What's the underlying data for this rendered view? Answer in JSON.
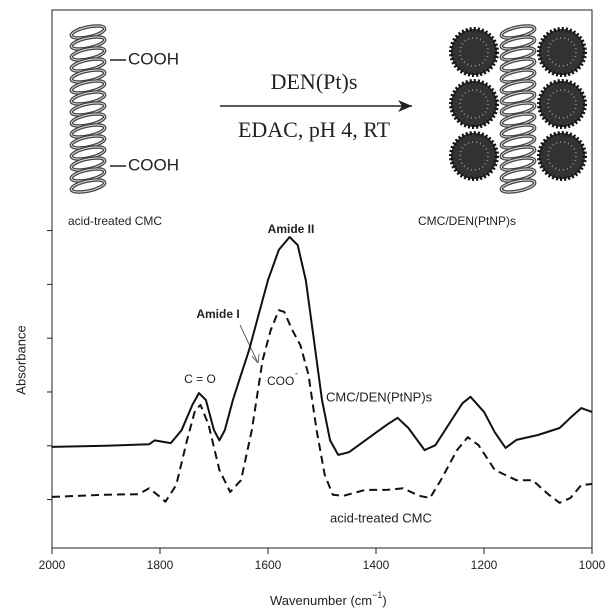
{
  "chart_data": {
    "type": "line",
    "xlabel": {
      "text": "Wavenumber (cm",
      "sup": "−1",
      "tail": ")"
    },
    "ylabel": "Absorbance",
    "xlim": [
      2000,
      1000
    ],
    "xticks": [
      2000,
      1800,
      1600,
      1400,
      1200,
      1000
    ],
    "ylim": [
      -0.9,
      9.1
    ],
    "yticks": [
      0,
      1,
      2,
      3,
      4,
      5
    ],
    "series": [
      {
        "name": "CMC/DEN(PtNP)s",
        "color": "#111",
        "dash": false,
        "x": [
          2000,
          1900,
          1820,
          1810,
          1780,
          1760,
          1740,
          1728,
          1715,
          1700,
          1690,
          1680,
          1665,
          1650,
          1635,
          1620,
          1600,
          1580,
          1560,
          1545,
          1530,
          1515,
          1500,
          1485,
          1470,
          1450,
          1420,
          1380,
          1360,
          1340,
          1310,
          1290,
          1260,
          1240,
          1225,
          1200,
          1180,
          1160,
          1140,
          1100,
          1060,
          1040,
          1020,
          1000
        ],
        "values": [
          0.98,
          1.0,
          1.03,
          1.1,
          1.05,
          1.29,
          1.76,
          1.98,
          1.85,
          1.29,
          1.1,
          1.29,
          1.85,
          2.32,
          2.78,
          3.34,
          4.08,
          4.64,
          4.88,
          4.73,
          4.08,
          2.97,
          1.85,
          1.1,
          0.83,
          0.88,
          1.1,
          1.39,
          1.52,
          1.33,
          0.92,
          1.01,
          1.48,
          1.79,
          1.91,
          1.63,
          1.25,
          0.96,
          1.11,
          1.2,
          1.33,
          1.52,
          1.7,
          1.63
        ]
      },
      {
        "name": "acid-treated CMC",
        "color": "#111",
        "dash": true,
        "x": [
          2000,
          1900,
          1840,
          1820,
          1800,
          1790,
          1770,
          1750,
          1735,
          1725,
          1710,
          1690,
          1670,
          1650,
          1630,
          1610,
          1595,
          1580,
          1570,
          1555,
          1540,
          1525,
          1510,
          1495,
          1480,
          1460,
          1420,
          1380,
          1350,
          1320,
          1300,
          1280,
          1250,
          1230,
          1210,
          1180,
          1140,
          1110,
          1080,
          1060,
          1040,
          1020,
          1000
        ],
        "values": [
          0.05,
          0.09,
          0.1,
          0.21,
          0.05,
          -0.04,
          0.27,
          1.1,
          1.66,
          1.76,
          1.39,
          0.55,
          0.14,
          0.36,
          1.29,
          2.59,
          3.15,
          3.52,
          3.49,
          3.15,
          2.87,
          2.32,
          1.29,
          0.46,
          0.09,
          0.07,
          0.18,
          0.18,
          0.21,
          0.07,
          0.03,
          0.36,
          0.92,
          1.16,
          1.01,
          0.55,
          0.36,
          0.36,
          0.09,
          -0.06,
          0.03,
          0.27,
          0.29
        ]
      }
    ],
    "annotations": {
      "amide2": "Amide II",
      "amide1": "Amide I",
      "co": "C = O",
      "coo": {
        "text": "COO",
        "sup": "-"
      }
    },
    "scheme": {
      "cooh": [
        "COOH",
        "COOH"
      ],
      "reagent": "DEN(Pt)s",
      "conditions": "EDAC, pH 4, RT",
      "left_label": "acid-treated CMC",
      "right_label": "CMC/DEN(PtNP)s"
    }
  }
}
